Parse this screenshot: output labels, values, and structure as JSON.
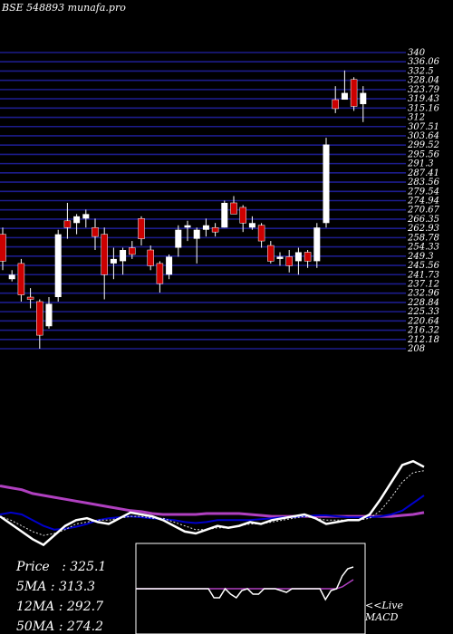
{
  "header": {
    "title": "BSE 548893 munafa.pro"
  },
  "stats": [
    {
      "label": "Price",
      "value": "325.1"
    },
    {
      "label": "5MA",
      "value": "313.3"
    },
    {
      "label": "12MA",
      "value": "292.7"
    },
    {
      "label": "50MA",
      "value": "274.2"
    }
  ],
  "macd_panel": {
    "link_text": "<<Live",
    "label": "MACD"
  },
  "colors": {
    "up": "#ffffff",
    "down": "#cc0000",
    "grid": "#1c1c8c",
    "ma_white": "#ffffff",
    "ma_blue": "#0000cc",
    "ma_magenta": "#b040c0",
    "macd_line": "#ffffff",
    "macd_signal": "#b040c0"
  },
  "chart_data": [
    {
      "type": "candlestick",
      "ylim": [
        208,
        340
      ],
      "y_tick_labels": [
        "340",
        "336.06",
        "332.5",
        "328.04",
        "323.79",
        "319.43",
        "315.16",
        "312",
        "307.51",
        "303.64",
        "299.52",
        "295.56",
        "291.3",
        "287.41",
        "283.56",
        "279.54",
        "274.94",
        "270.67",
        "266.35",
        "262.93",
        "258.78",
        "254.33",
        "249.3",
        "245.56",
        "241.73",
        "237.12",
        "232.96",
        "228.84",
        "225.33",
        "220.64",
        "216.32",
        "212.18",
        "208"
      ],
      "candles": [
        {
          "o": 259,
          "h": 262,
          "l": 243,
          "c": 247,
          "d": "down"
        },
        {
          "o": 239,
          "h": 243,
          "l": 238,
          "c": 241,
          "d": "up"
        },
        {
          "o": 246,
          "h": 248,
          "l": 229,
          "c": 232,
          "d": "down"
        },
        {
          "o": 231,
          "h": 235,
          "l": 226,
          "c": 230,
          "d": "down"
        },
        {
          "o": 229,
          "h": 230,
          "l": 208,
          "c": 214,
          "d": "down"
        },
        {
          "o": 218,
          "h": 231,
          "l": 217,
          "c": 228,
          "d": "up"
        },
        {
          "o": 231,
          "h": 261,
          "l": 229,
          "c": 259,
          "d": "up"
        },
        {
          "o": 262,
          "h": 273,
          "l": 257,
          "c": 265,
          "d": "down"
        },
        {
          "o": 264,
          "h": 268,
          "l": 259,
          "c": 267,
          "d": "up"
        },
        {
          "o": 266,
          "h": 270,
          "l": 262,
          "c": 268,
          "d": "up"
        },
        {
          "o": 262,
          "h": 266,
          "l": 252,
          "c": 258,
          "d": "down"
        },
        {
          "o": 259,
          "h": 262,
          "l": 230,
          "c": 241,
          "d": "down"
        },
        {
          "o": 246,
          "h": 253,
          "l": 239,
          "c": 248,
          "d": "up"
        },
        {
          "o": 247,
          "h": 253,
          "l": 241,
          "c": 252,
          "d": "up"
        },
        {
          "o": 253,
          "h": 256,
          "l": 248,
          "c": 250,
          "d": "down"
        },
        {
          "o": 266,
          "h": 267,
          "l": 254,
          "c": 257,
          "d": "down"
        },
        {
          "o": 252,
          "h": 254,
          "l": 243,
          "c": 245,
          "d": "down"
        },
        {
          "o": 246,
          "h": 247,
          "l": 233,
          "c": 237,
          "d": "down"
        },
        {
          "o": 241,
          "h": 250,
          "l": 239,
          "c": 249,
          "d": "up"
        },
        {
          "o": 253,
          "h": 263,
          "l": 249,
          "c": 261,
          "d": "up"
        },
        {
          "o": 262,
          "h": 265,
          "l": 256,
          "c": 263,
          "d": "up"
        },
        {
          "o": 257,
          "h": 262,
          "l": 246,
          "c": 261,
          "d": "up"
        },
        {
          "o": 261,
          "h": 266,
          "l": 258,
          "c": 263,
          "d": "up"
        },
        {
          "o": 260,
          "h": 264,
          "l": 258,
          "c": 262,
          "d": "down"
        },
        {
          "o": 262,
          "h": 274,
          "l": 262,
          "c": 273,
          "d": "up"
        },
        {
          "o": 273,
          "h": 276,
          "l": 269,
          "c": 268,
          "d": "down"
        },
        {
          "o": 271,
          "h": 272,
          "l": 260,
          "c": 264,
          "d": "down"
        },
        {
          "o": 264,
          "h": 267,
          "l": 261,
          "c": 262,
          "d": "up"
        },
        {
          "o": 263,
          "h": 264,
          "l": 253,
          "c": 256,
          "d": "down"
        },
        {
          "o": 254,
          "h": 256,
          "l": 246,
          "c": 247,
          "d": "down"
        },
        {
          "o": 248,
          "h": 251,
          "l": 245,
          "c": 249,
          "d": "up"
        },
        {
          "o": 249,
          "h": 252,
          "l": 242,
          "c": 245,
          "d": "down"
        },
        {
          "o": 247,
          "h": 253,
          "l": 241,
          "c": 251,
          "d": "up"
        },
        {
          "o": 247,
          "h": 252,
          "l": 244,
          "c": 251,
          "d": "down"
        },
        {
          "o": 247,
          "h": 264,
          "l": 244,
          "c": 262,
          "d": "up"
        },
        {
          "o": 264,
          "h": 302,
          "l": 262,
          "c": 299,
          "d": "up"
        },
        {
          "o": 319,
          "h": 325,
          "l": 313,
          "c": 315,
          "d": "down"
        },
        {
          "o": 319,
          "h": 332,
          "l": 319,
          "c": 322,
          "d": "up"
        },
        {
          "o": 328,
          "h": 329,
          "l": 314,
          "c": 316,
          "d": "down"
        },
        {
          "o": 322,
          "h": 325,
          "l": 309,
          "c": 317,
          "d": "up"
        }
      ],
      "moving_average_lines": {
        "ylim": [
          0,
          100
        ],
        "blue": [
          40,
          42,
          40,
          34,
          28,
          24,
          25,
          27,
          30,
          34,
          36,
          37,
          38,
          37,
          36,
          35,
          34,
          32,
          31,
          32,
          34,
          34,
          34,
          34,
          35,
          36,
          37,
          37,
          38,
          39,
          39,
          38,
          37,
          37,
          37,
          38,
          40,
          44,
          52,
          60
        ],
        "magenta": [
          70,
          68,
          66,
          62,
          60,
          58,
          56,
          54,
          52,
          50,
          48,
          46,
          44,
          43,
          41,
          40,
          40,
          40,
          40,
          41,
          41,
          41,
          41,
          40,
          39,
          38,
          38,
          38,
          38,
          38,
          38,
          38,
          38,
          38,
          38,
          38,
          38,
          39,
          40,
          42
        ],
        "white": [
          38,
          30,
          22,
          14,
          8,
          18,
          28,
          34,
          36,
          32,
          30,
          36,
          42,
          40,
          38,
          34,
          28,
          22,
          20,
          24,
          28,
          26,
          28,
          32,
          30,
          34,
          36,
          38,
          40,
          36,
          30,
          32,
          34,
          34,
          40,
          56,
          74,
          92,
          96,
          90
        ],
        "white_dotted": [
          38,
          34,
          28,
          22,
          18,
          20,
          24,
          30,
          32,
          34,
          34,
          36,
          38,
          38,
          36,
          36,
          32,
          28,
          24,
          24,
          26,
          26,
          28,
          30,
          30,
          32,
          34,
          36,
          38,
          36,
          34,
          34,
          34,
          34,
          36,
          44,
          58,
          74,
          84,
          86
        ]
      }
    },
    {
      "type": "line",
      "title": "MACD",
      "ylim": [
        0,
        100
      ],
      "macd": [
        50,
        50,
        50,
        50,
        50,
        50,
        50,
        50,
        50,
        50,
        50,
        50,
        50,
        50,
        40,
        40,
        50,
        44,
        40,
        48,
        50,
        44,
        44,
        50,
        50,
        50,
        48,
        46,
        50,
        50,
        50,
        50,
        50,
        50,
        38,
        48,
        50,
        64,
        72,
        74
      ],
      "signal": [
        50,
        50,
        50,
        50,
        50,
        50,
        50,
        50,
        50,
        50,
        50,
        50,
        50,
        50,
        50,
        50,
        50,
        50,
        50,
        50,
        50,
        50,
        50,
        50,
        50,
        50,
        50,
        50,
        50,
        50,
        50,
        50,
        50,
        50,
        50,
        50,
        50,
        52,
        56,
        60
      ]
    }
  ]
}
